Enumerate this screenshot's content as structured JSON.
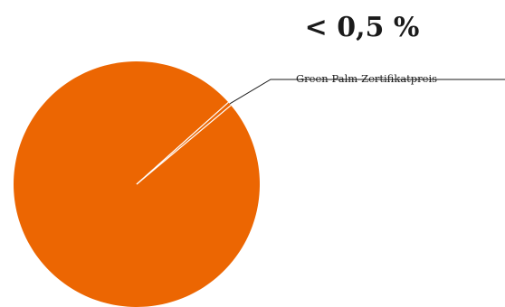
{
  "chart_data": {
    "type": "pie",
    "slices": [
      {
        "label": "",
        "value": 99.5,
        "color": "#EC6602"
      },
      {
        "label": "Green-Palm-Zertifikatpreis",
        "value": 0.5,
        "color": "#EC6602"
      }
    ],
    "annotation": {
      "value_text": "< 0,5 %",
      "name_text": "Green-Palm-Zertifikatpreis"
    },
    "separator_color": "#ffffff",
    "leader_color": "#1a1a1a"
  }
}
